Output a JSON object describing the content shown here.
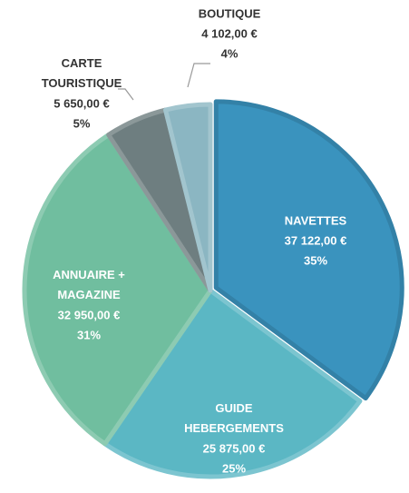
{
  "chart_data": {
    "type": "pie",
    "categories": [
      "NAVETTES",
      "GUIDE\nHEBERGEMENTS",
      "ANNUAIRE +\nMAGAZINE",
      "CARTE\nTOURISTIQUE",
      "BOUTIQUE"
    ],
    "values": [
      37122,
      25875,
      32950,
      5650,
      4102
    ],
    "value_labels": [
      "37 122,00 €",
      "25 875,00 €",
      "32 950,00 €",
      "5 650,00 €",
      "4 102,00 €"
    ],
    "percentages": [
      35,
      25,
      31,
      5,
      4
    ],
    "percentage_labels": [
      "35%",
      "25%",
      "31%",
      "5%",
      "4%"
    ],
    "colors": [
      "#3a93be",
      "#5bb7c4",
      "#70be9f",
      "#6e7e80",
      "#8bb6c2"
    ]
  }
}
